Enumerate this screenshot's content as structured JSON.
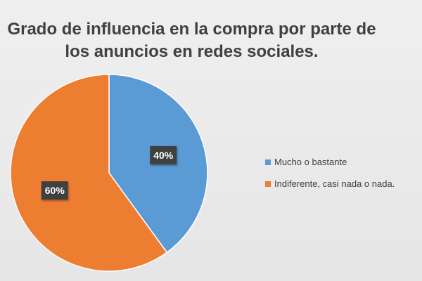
{
  "chart_data": {
    "type": "pie",
    "title_lines": [
      "Grado de influencia en la compra por parte de",
      "los anuncios en redes sociales."
    ],
    "categories": [
      "Mucho o bastante",
      "Indiferente, casi nada o nada."
    ],
    "values": [
      40,
      60
    ],
    "data_labels": [
      "40%",
      "60%"
    ],
    "colors": [
      "#5b9bd5",
      "#ed7d31"
    ],
    "legend_position": "right",
    "start_angle_deg": 0,
    "direction": "clockwise"
  }
}
